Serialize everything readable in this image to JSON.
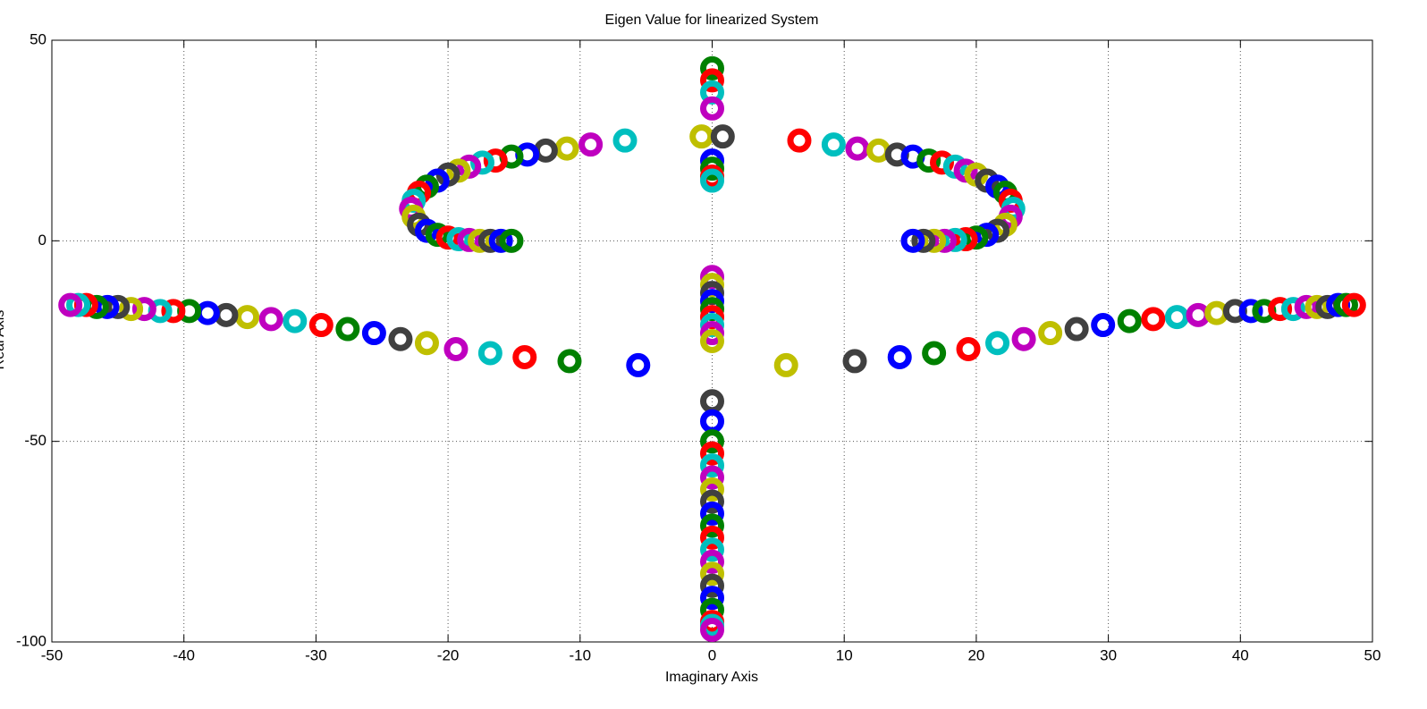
{
  "chart_data": {
    "type": "scatter",
    "title": "Eigen Value for linearized System",
    "x_label": "Imaginary Axis",
    "y_label": "Real Axis",
    "xlim": [
      -50,
      50
    ],
    "ylim": [
      -100,
      50
    ],
    "xticks": [
      -50,
      -40,
      -30,
      -20,
      -10,
      0,
      10,
      20,
      30,
      40,
      50
    ],
    "yticks": [
      -100,
      -50,
      0,
      50
    ],
    "grid": true,
    "colors": [
      "#0000ff",
      "#008000",
      "#ff0000",
      "#00bfbf",
      "#bf00bf",
      "#bfbf00",
      "#404040"
    ],
    "x": [
      -5.6,
      -10.8,
      -14.2,
      -16.8,
      -19.4,
      -21.6,
      -23.6,
      -25.6,
      -27.6,
      -29.6,
      -31.6,
      -33.4,
      -35.2,
      -36.8,
      -38.2,
      -39.6,
      -40.8,
      -41.8,
      -43,
      -44,
      -45,
      -45.8,
      -46.6,
      -47.4,
      -48,
      -48.6,
      5.6,
      10.8,
      14.2,
      16.8,
      19.4,
      21.6,
      23.6,
      25.6,
      27.6,
      29.6,
      31.6,
      33.4,
      35.2,
      36.8,
      38.2,
      39.6,
      40.8,
      41.8,
      43,
      44,
      45,
      45.8,
      46.6,
      47.4,
      48,
      48.6,
      -6.6,
      -9.2,
      -11,
      -12.6,
      -14,
      -15.2,
      -16.4,
      -17.4,
      -18.4,
      -19.2,
      -20,
      -20.8,
      -21.6,
      -22.2,
      -22.6,
      -22.8,
      -22.6,
      -22.2,
      -21.6,
      -20.8,
      -20,
      -19.2,
      -18.4,
      -17.6,
      -16.8,
      -16,
      -15.2,
      6.6,
      9.2,
      11,
      12.6,
      14,
      15.2,
      16.4,
      17.4,
      18.4,
      19.2,
      20,
      20.8,
      21.6,
      22.2,
      22.6,
      22.8,
      22.6,
      22.2,
      21.6,
      20.8,
      20,
      19.2,
      18.4,
      17.6,
      16.8,
      16,
      15.2,
      0,
      0,
      0,
      0,
      -0.8,
      0.8,
      0,
      0,
      0,
      0,
      0,
      0,
      0,
      0,
      0,
      0,
      0,
      0,
      0,
      0,
      0,
      0,
      0,
      0,
      0,
      0,
      0,
      0,
      0,
      0,
      0,
      0,
      0,
      0,
      0,
      0,
      0,
      0,
      0
    ],
    "values": [
      -31,
      -30,
      -29,
      -28,
      -27,
      -25.5,
      -24.5,
      -23,
      -22,
      -21,
      -20,
      -19.5,
      -19,
      -18.5,
      -18,
      -17.5,
      -17.5,
      -17.5,
      -17,
      -17,
      -16.5,
      -16.5,
      -16.5,
      -16,
      -16,
      -16,
      -31,
      -30,
      -29,
      -28,
      -27,
      -25.5,
      -24.5,
      -23,
      -22,
      -21,
      -20,
      -19.5,
      -19,
      -18.5,
      -18,
      -17.5,
      -17.5,
      -17.5,
      -17,
      -17,
      -16.5,
      -16.5,
      -16.5,
      -16,
      -16,
      -16,
      25,
      24,
      23,
      22.5,
      21.5,
      21,
      20,
      19.5,
      18.5,
      17.5,
      16.5,
      15,
      13.5,
      12,
      10,
      8,
      6,
      4,
      2.5,
      1.5,
      0.8,
      0.4,
      0.2,
      0,
      0,
      0,
      0,
      25,
      24,
      23,
      22.5,
      21.5,
      21,
      20,
      19.5,
      18.5,
      17.5,
      16.5,
      15,
      13.5,
      12,
      10,
      8,
      6,
      4,
      2.5,
      1.5,
      0.8,
      0.4,
      0.2,
      0,
      0,
      0,
      0,
      43,
      40,
      37,
      33,
      26,
      26,
      20,
      18,
      16,
      15,
      -9,
      -11,
      -13,
      -15,
      -17,
      -19,
      -21,
      -23,
      -25,
      -40,
      -45,
      -50,
      -53,
      -56,
      -59,
      -62,
      -65,
      -68,
      -71,
      -74,
      -77,
      -80,
      -83,
      -86,
      -89,
      -92,
      -95,
      -96,
      -97
    ]
  }
}
